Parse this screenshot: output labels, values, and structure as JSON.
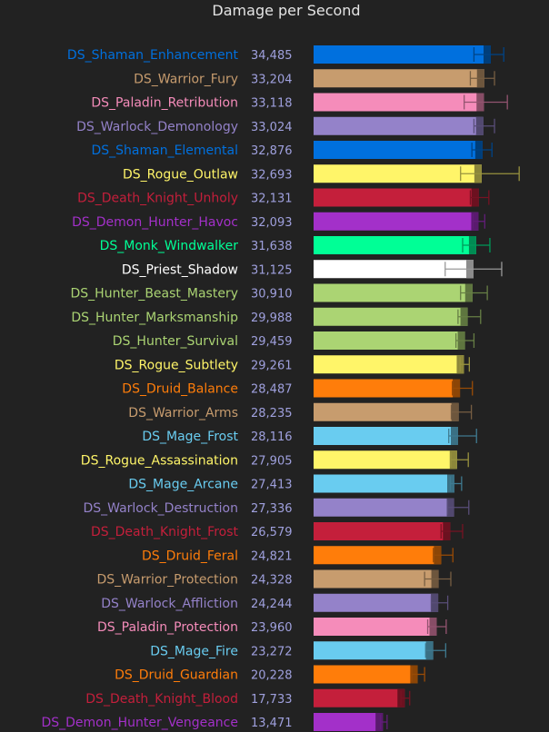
{
  "chart_data": {
    "type": "bar",
    "orientation": "horizontal",
    "title": "Damage per Second",
    "grid": false,
    "xlim": [
      0,
      36000
    ],
    "series": [
      {
        "name": "DS_Shaman_Enhancement",
        "value": 34485,
        "color": "#0070DE",
        "err_low": 31200,
        "err_high": 37000
      },
      {
        "name": "DS_Warrior_Fury",
        "value": 33204,
        "color": "#C79C6E",
        "err_low": 30500,
        "err_high": 35200
      },
      {
        "name": "DS_Paladin_Retribution",
        "value": 33118,
        "color": "#F58CBA",
        "err_low": 29300,
        "err_high": 37700
      },
      {
        "name": "DS_Warlock_Demonology",
        "value": 33024,
        "color": "#9482C9",
        "err_low": 31200,
        "err_high": 35200
      },
      {
        "name": "DS_Shaman_Elemental",
        "value": 32876,
        "color": "#0070DE",
        "err_low": 30800,
        "err_high": 34700
      },
      {
        "name": "DS_Rogue_Outlaw",
        "value": 32693,
        "color": "#FFF569",
        "err_low": 28600,
        "err_high": 40000
      },
      {
        "name": "DS_Death_Knight_Unholy",
        "value": 32131,
        "color": "#C41F3B",
        "err_low": 30500,
        "err_high": 34100
      },
      {
        "name": "DS_Demon_Hunter_Havoc",
        "value": 32093,
        "color": "#A330C9",
        "err_low": 31000,
        "err_high": 33300
      },
      {
        "name": "DS_Monk_Windwalker",
        "value": 31638,
        "color": "#00FF96",
        "err_low": 29000,
        "err_high": 34300
      },
      {
        "name": "DS_Priest_Shadow",
        "value": 31125,
        "color": "#FFFFFF",
        "err_low": 25600,
        "err_high": 36600
      },
      {
        "name": "DS_Hunter_Beast_Mastery",
        "value": 30910,
        "color": "#ABD473",
        "err_low": 28600,
        "err_high": 33800
      },
      {
        "name": "DS_Hunter_Marksmanship",
        "value": 29988,
        "color": "#ABD473",
        "err_low": 28100,
        "err_high": 32500
      },
      {
        "name": "DS_Hunter_Survival",
        "value": 29459,
        "color": "#ABD473",
        "err_low": 27700,
        "err_high": 31200
      },
      {
        "name": "DS_Rogue_Subtlety",
        "value": 29261,
        "color": "#FFF569",
        "err_low": 28500,
        "err_high": 30300
      },
      {
        "name": "DS_Druid_Balance",
        "value": 28487,
        "color": "#FF7D0A",
        "err_low": 27000,
        "err_high": 30900
      },
      {
        "name": "DS_Warrior_Arms",
        "value": 28235,
        "color": "#C79C6E",
        "err_low": 26800,
        "err_high": 30700
      },
      {
        "name": "DS_Mage_Frost",
        "value": 28116,
        "color": "#69CCF0",
        "err_low": 26300,
        "err_high": 31700
      },
      {
        "name": "DS_Rogue_Assassination",
        "value": 27905,
        "color": "#FFF569",
        "err_low": 26700,
        "err_high": 30100
      },
      {
        "name": "DS_Mage_Arcane",
        "value": 27413,
        "color": "#69CCF0",
        "err_low": 26600,
        "err_high": 28800
      },
      {
        "name": "DS_Warlock_Destruction",
        "value": 27336,
        "color": "#9482C9",
        "err_low": 26100,
        "err_high": 30200
      },
      {
        "name": "DS_Death_Knight_Frost",
        "value": 26579,
        "color": "#C41F3B",
        "err_low": 24800,
        "err_high": 29000
      },
      {
        "name": "DS_Druid_Feral",
        "value": 24821,
        "color": "#FF7D0A",
        "err_low": 23300,
        "err_high": 27100
      },
      {
        "name": "DS_Warrior_Protection",
        "value": 24328,
        "color": "#C79C6E",
        "err_low": 21600,
        "err_high": 26700
      },
      {
        "name": "DS_Warlock_Affliction",
        "value": 24244,
        "color": "#9482C9",
        "err_low": 22900,
        "err_high": 26100
      },
      {
        "name": "DS_Paladin_Protection",
        "value": 23960,
        "color": "#F58CBA",
        "err_low": 22200,
        "err_high": 25800
      },
      {
        "name": "DS_Mage_Fire",
        "value": 23272,
        "color": "#69CCF0",
        "err_low": 21800,
        "err_high": 25700
      },
      {
        "name": "DS_Druid_Guardian",
        "value": 20228,
        "color": "#FF7D0A",
        "err_low": 19100,
        "err_high": 21600
      },
      {
        "name": "DS_Death_Knight_Blood",
        "value": 17733,
        "color": "#C41F3B",
        "err_low": 17000,
        "err_high": 18700
      },
      {
        "name": "DS_Demon_Hunter_Vengeance",
        "value": 13471,
        "color": "#A330C9",
        "err_low": 13000,
        "err_high": 14300
      }
    ]
  }
}
